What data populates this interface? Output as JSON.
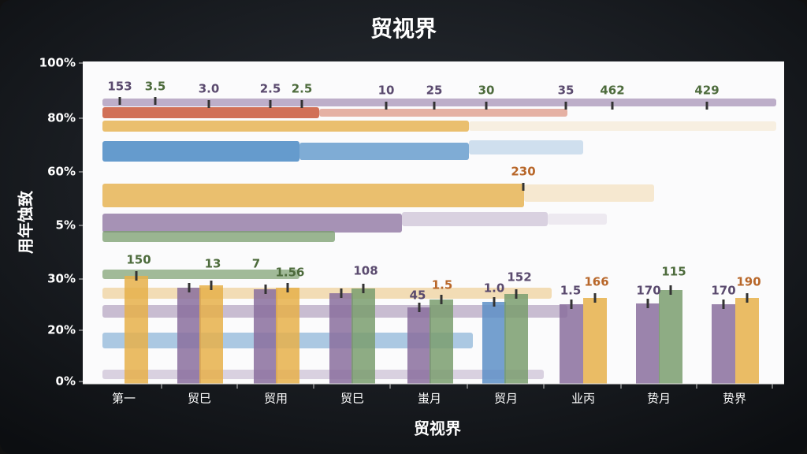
{
  "title": "贸视界",
  "y_axis_title": "用年蚀致",
  "x_axis_title": "贸视界",
  "y_axis_labels": [
    "100%",
    "80%",
    "60%",
    "5%",
    "30%",
    "20%",
    "0%"
  ],
  "categories": [
    "第一",
    "贸巳",
    "贸用",
    "贸巳",
    "蚩月",
    "贸月",
    "业丙",
    "贽月",
    "贽界"
  ],
  "annotations": [
    "153",
    "3.5",
    "3.0",
    "2.5",
    "2.5",
    "10",
    "25",
    "30",
    "35",
    "462",
    "429",
    "230",
    "150",
    "13",
    "7",
    "1.56",
    "108",
    "45",
    "1.5",
    "1.0",
    "152",
    "1.5",
    "166",
    "170",
    "115",
    "170",
    "190"
  ]
}
